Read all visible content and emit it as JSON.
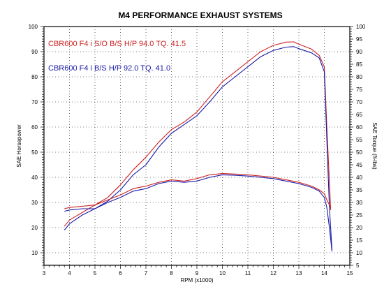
{
  "chart_data": {
    "type": "line",
    "title": "M4 PERFORMANCE EXHAUST SYSTEMS",
    "xlabel": "RPM (x1000)",
    "ylabel": "SAE Horsepower",
    "y2label": "SAE Torque (ft-lbs)",
    "xlim": [
      3,
      15
    ],
    "ylim": [
      5,
      100
    ],
    "y2lim": [
      5,
      100
    ],
    "x_ticks": [
      3,
      4,
      5,
      6,
      7,
      8,
      9,
      10,
      11,
      12,
      13,
      14,
      15
    ],
    "y_ticks": [
      10,
      20,
      30,
      40,
      50,
      60,
      70,
      80,
      90,
      100
    ],
    "y2_ticks": [
      5,
      10,
      15,
      20,
      25,
      30,
      35,
      40,
      45,
      50,
      55,
      60,
      65,
      70,
      75,
      80,
      85,
      90,
      95,
      100
    ],
    "grid": true,
    "legend_placement": "top-left",
    "series": [
      {
        "name": "CBR600 F4 i  S/O  B/S  H/P 94.0  TQ. 41.5",
        "color": "#cc2222",
        "metric": "horsepower",
        "x": [
          3.8,
          4.0,
          4.5,
          5.0,
          5.5,
          6.0,
          6.5,
          7.0,
          7.5,
          8.0,
          8.5,
          9.0,
          9.5,
          10.0,
          10.5,
          11.0,
          11.5,
          12.0,
          12.5,
          12.8,
          13.0,
          13.5,
          13.8,
          14.0,
          14.1,
          14.2,
          14.25
        ],
        "y": [
          20.5,
          23,
          26,
          29,
          32,
          37,
          43,
          48,
          54,
          59,
          62,
          66,
          72,
          78,
          82,
          86,
          90,
          92.5,
          93.8,
          93.9,
          93,
          91,
          88.5,
          84,
          60,
          38,
          27
        ]
      },
      {
        "name": "CBR600 F4 i  B/S  H/P 92.0  TQ. 41.0",
        "color": "#1a1aa8",
        "metric": "horsepower",
        "x": [
          3.8,
          4.0,
          4.5,
          5.0,
          5.5,
          6.0,
          6.5,
          7.0,
          7.5,
          8.0,
          8.5,
          9.0,
          9.5,
          10.0,
          10.5,
          11.0,
          11.5,
          12.0,
          12.5,
          12.8,
          13.0,
          13.5,
          13.8,
          14.0,
          14.1,
          14.2,
          14.3
        ],
        "y": [
          19,
          21.5,
          25,
          27.5,
          30.5,
          35,
          41,
          45,
          52,
          57.5,
          61,
          64.5,
          70,
          76,
          80,
          84,
          88,
          90.5,
          91.8,
          92,
          91.2,
          89.5,
          87.5,
          82,
          55,
          28,
          11
        ]
      },
      {
        "name": "CBR600 F4 i  S/O  B/S  H/P 94.0  TQ. 41.5",
        "color": "#cc2222",
        "metric": "torque",
        "x": [
          3.8,
          4.0,
          4.5,
          5.0,
          5.5,
          6.0,
          6.5,
          7.0,
          7.5,
          8.0,
          8.5,
          9.0,
          9.5,
          10.0,
          10.5,
          11.0,
          11.5,
          12.0,
          12.5,
          13.0,
          13.5,
          13.8,
          14.0,
          14.1,
          14.2,
          14.25
        ],
        "y": [
          27.5,
          28,
          28.5,
          29,
          31,
          33,
          35.5,
          36.5,
          38,
          39,
          38.5,
          39.5,
          41,
          41.5,
          41.3,
          41,
          40.5,
          40,
          39,
          38,
          36.5,
          35,
          33.5,
          31,
          29,
          28
        ]
      },
      {
        "name": "CBR600 F4 i  B/S  H/P 92.0  TQ. 41.0",
        "color": "#1a1aa8",
        "metric": "torque",
        "x": [
          3.8,
          4.0,
          4.5,
          5.0,
          5.5,
          6.0,
          6.5,
          7.0,
          7.5,
          8.0,
          8.5,
          9.0,
          9.5,
          10.0,
          10.5,
          11.0,
          11.5,
          12.0,
          12.5,
          13.0,
          13.5,
          13.8,
          14.0,
          14.1,
          14.2,
          14.3
        ],
        "y": [
          26.5,
          27,
          27.5,
          27.5,
          30,
          32,
          34.5,
          35.5,
          37.5,
          38.5,
          38,
          38.5,
          40,
          41,
          40.8,
          40.5,
          40,
          39.5,
          38.5,
          37.5,
          36,
          34.5,
          32,
          28,
          20,
          10.5
        ]
      }
    ]
  }
}
